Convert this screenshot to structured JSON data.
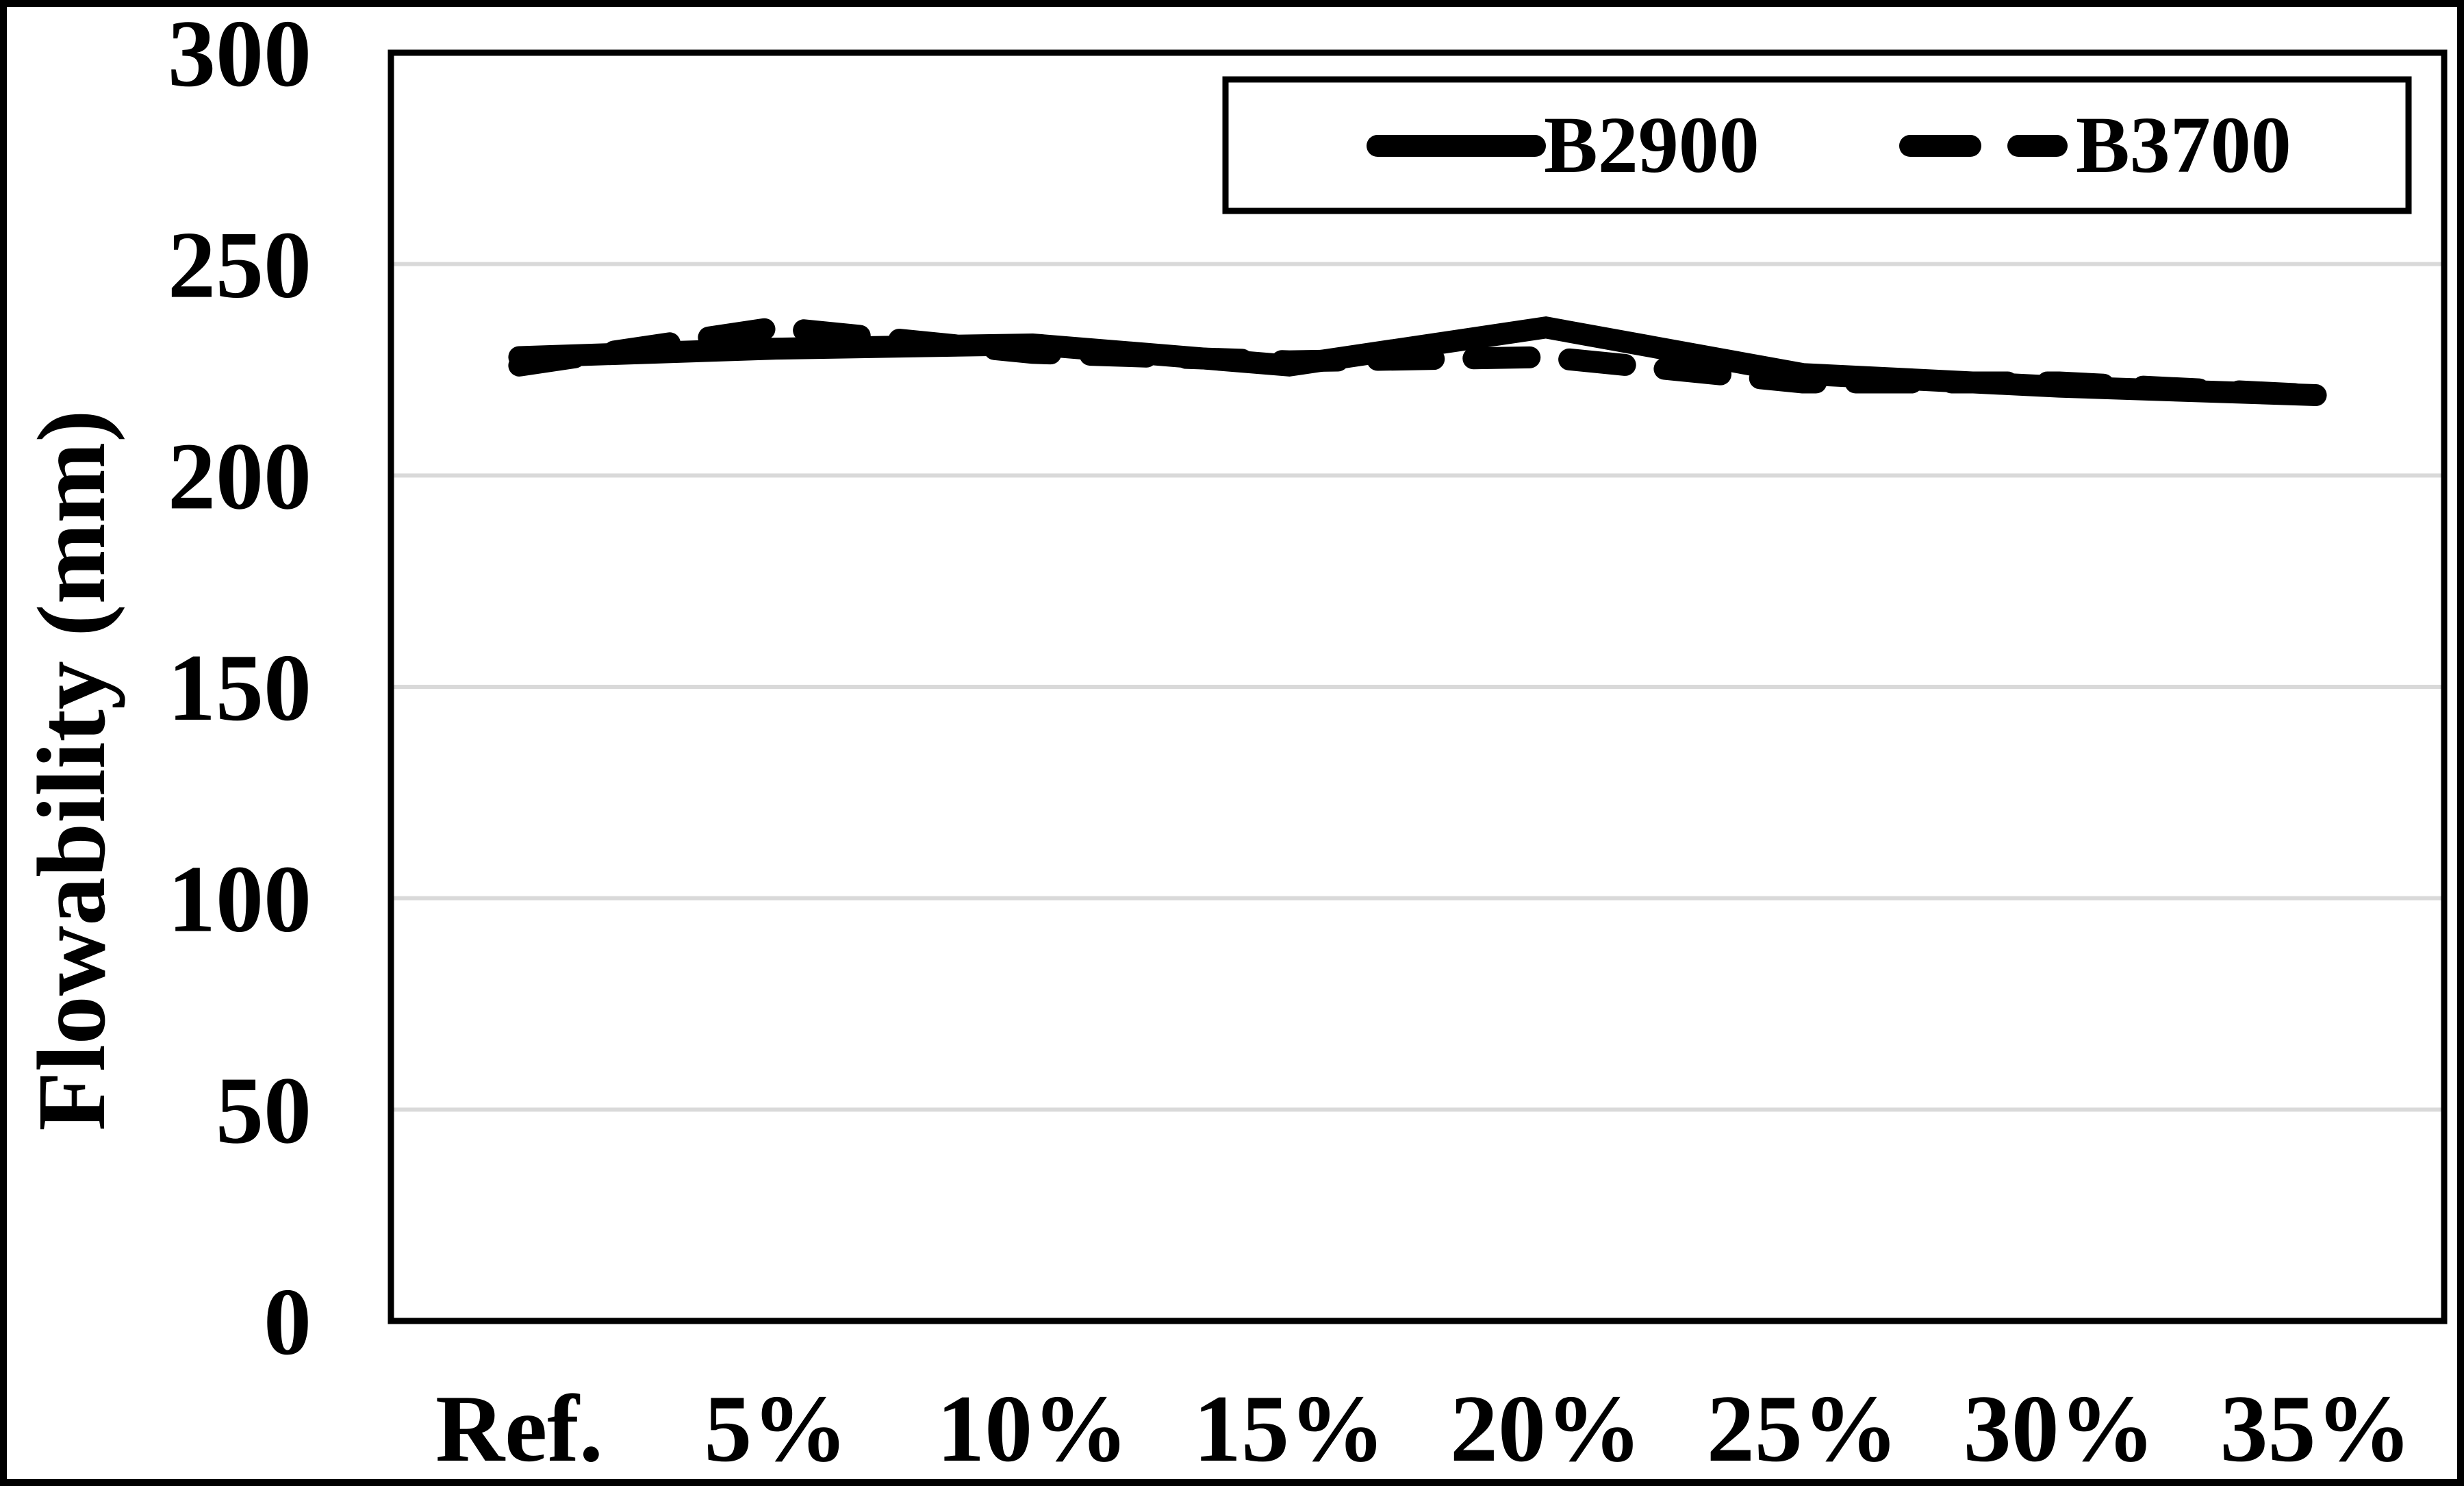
{
  "chart_data": {
    "type": "line",
    "title": "",
    "xlabel": "",
    "ylabel": "Flowability (mm)",
    "categories": [
      "Ref.",
      "5%",
      "10%",
      "15%",
      "20%",
      "25%",
      "30%",
      "35%"
    ],
    "series": [
      {
        "name": "B2900",
        "style": "solid",
        "values": [
          228,
          230,
          231,
          226,
          235,
          224,
          221,
          219
        ]
      },
      {
        "name": "B3700",
        "style": "dashed",
        "values": [
          226,
          235,
          229,
          227,
          228,
          222,
          222,
          219
        ]
      }
    ],
    "ylim": [
      0,
      300
    ],
    "yticks": [
      0,
      50,
      100,
      150,
      200,
      250,
      300
    ],
    "grid": true,
    "legend_position": "top-right",
    "colors": {
      "series": "#000000",
      "grid": "#d9d9d9",
      "border": "#000000",
      "background": "#ffffff"
    }
  },
  "legend": {
    "items": [
      {
        "label": "B2900",
        "style": "solid"
      },
      {
        "label": "B3700",
        "style": "dashed"
      }
    ]
  }
}
